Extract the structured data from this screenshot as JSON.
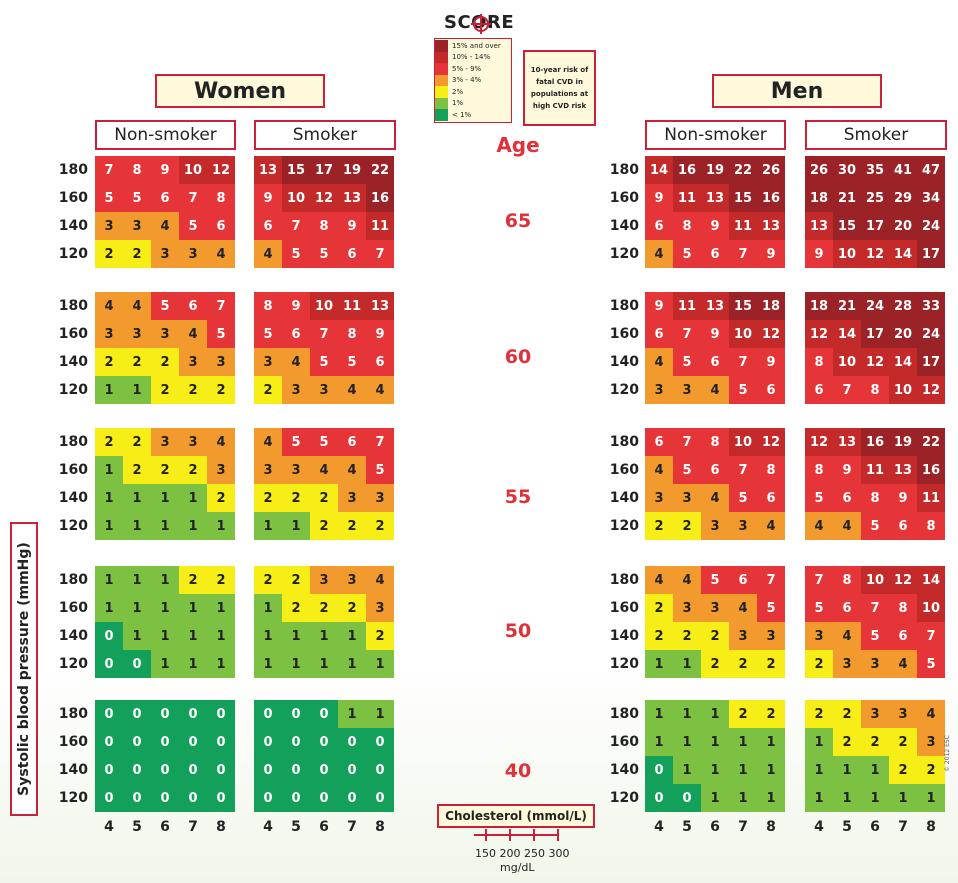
{
  "header": {
    "logo_text": "SCORE",
    "women_title": "Women",
    "men_title": "Men",
    "non_smoker": "Non-smoker",
    "smoker": "Smoker",
    "age_title": "Age",
    "risk_note": "10-year risk of fatal CVD in populations at high CVD risk"
  },
  "legend": [
    {
      "label": "15% and over",
      "color": "#9b2227"
    },
    {
      "label": "10% - 14%",
      "color": "#c52a2a"
    },
    {
      "label": "5% - 9%",
      "color": "#e53538"
    },
    {
      "label": "3% - 4%",
      "color": "#f39a2e"
    },
    {
      "label": "2%",
      "color": "#f8ee17"
    },
    {
      "label": "1%",
      "color": "#7dc142"
    },
    {
      "label": "< 1%",
      "color": "#12a05a"
    }
  ],
  "footer": {
    "cholesterol_label": "Cholesterol (mmol/L)",
    "mg_values": [
      "150",
      "200",
      "250",
      "300"
    ],
    "mg_unit": "mg/dL",
    "y_axis_label": "Systolic blood pressure (mmHg)",
    "copyright": "© 2012 ESC"
  },
  "chart_data": {
    "type": "heatmap",
    "title": "SCORE",
    "xlabel": "Cholesterol (mmol/L)",
    "ylabel": "Systolic blood pressure (mmHg)",
    "x_categories": [
      "4",
      "5",
      "6",
      "7",
      "8"
    ],
    "y_categories": [
      "180",
      "160",
      "140",
      "120"
    ],
    "ages": [
      "65",
      "60",
      "55",
      "50",
      "40"
    ],
    "panels": [
      {
        "sex": "Women",
        "smoking": "Non-smoker",
        "grids": [
          [
            [
              7,
              8,
              9,
              10,
              12
            ],
            [
              5,
              5,
              6,
              7,
              8
            ],
            [
              3,
              3,
              4,
              5,
              6
            ],
            [
              2,
              2,
              3,
              3,
              4
            ]
          ],
          [
            [
              4,
              4,
              5,
              6,
              7
            ],
            [
              3,
              3,
              3,
              4,
              5
            ],
            [
              2,
              2,
              2,
              3,
              3
            ],
            [
              1,
              1,
              2,
              2,
              2
            ]
          ],
          [
            [
              2,
              2,
              3,
              3,
              4
            ],
            [
              1,
              2,
              2,
              2,
              3
            ],
            [
              1,
              1,
              1,
              1,
              2
            ],
            [
              1,
              1,
              1,
              1,
              1
            ]
          ],
          [
            [
              1,
              1,
              1,
              2,
              2
            ],
            [
              1,
              1,
              1,
              1,
              1
            ],
            [
              0,
              1,
              1,
              1,
              1
            ],
            [
              0,
              0,
              1,
              1,
              1
            ]
          ],
          [
            [
              0,
              0,
              0,
              0,
              0
            ],
            [
              0,
              0,
              0,
              0,
              0
            ],
            [
              0,
              0,
              0,
              0,
              0
            ],
            [
              0,
              0,
              0,
              0,
              0
            ]
          ]
        ]
      },
      {
        "sex": "Women",
        "smoking": "Smoker",
        "grids": [
          [
            [
              13,
              15,
              17,
              19,
              22
            ],
            [
              9,
              10,
              12,
              13,
              16
            ],
            [
              6,
              7,
              8,
              9,
              11
            ],
            [
              4,
              5,
              5,
              6,
              7
            ]
          ],
          [
            [
              8,
              9,
              10,
              11,
              13
            ],
            [
              5,
              6,
              7,
              8,
              9
            ],
            [
              3,
              4,
              5,
              5,
              6
            ],
            [
              2,
              3,
              3,
              4,
              4
            ]
          ],
          [
            [
              4,
              5,
              5,
              6,
              7
            ],
            [
              3,
              3,
              4,
              4,
              5
            ],
            [
              2,
              2,
              2,
              3,
              3
            ],
            [
              1,
              1,
              2,
              2,
              2
            ]
          ],
          [
            [
              2,
              2,
              3,
              3,
              4
            ],
            [
              1,
              2,
              2,
              2,
              3
            ],
            [
              1,
              1,
              1,
              1,
              2
            ],
            [
              1,
              1,
              1,
              1,
              1
            ]
          ],
          [
            [
              0,
              0,
              0,
              1,
              1
            ],
            [
              0,
              0,
              0,
              0,
              0
            ],
            [
              0,
              0,
              0,
              0,
              0
            ],
            [
              0,
              0,
              0,
              0,
              0
            ]
          ]
        ]
      },
      {
        "sex": "Men",
        "smoking": "Non-smoker",
        "grids": [
          [
            [
              14,
              16,
              19,
              22,
              26
            ],
            [
              9,
              11,
              13,
              15,
              16
            ],
            [
              6,
              8,
              9,
              11,
              13
            ],
            [
              4,
              5,
              6,
              7,
              9
            ]
          ],
          [
            [
              9,
              11,
              13,
              15,
              18
            ],
            [
              6,
              7,
              9,
              10,
              12
            ],
            [
              4,
              5,
              6,
              7,
              9
            ],
            [
              3,
              3,
              4,
              5,
              6
            ]
          ],
          [
            [
              6,
              7,
              8,
              10,
              12
            ],
            [
              4,
              5,
              6,
              7,
              8
            ],
            [
              3,
              3,
              4,
              5,
              6
            ],
            [
              2,
              2,
              3,
              3,
              4
            ]
          ],
          [
            [
              4,
              4,
              5,
              6,
              7
            ],
            [
              2,
              3,
              3,
              4,
              5
            ],
            [
              2,
              2,
              2,
              3,
              3
            ],
            [
              1,
              1,
              2,
              2,
              2
            ]
          ],
          [
            [
              1,
              1,
              1,
              2,
              2
            ],
            [
              1,
              1,
              1,
              1,
              1
            ],
            [
              0,
              1,
              1,
              1,
              1
            ],
            [
              0,
              0,
              1,
              1,
              1
            ]
          ]
        ]
      },
      {
        "sex": "Men",
        "smoking": "Smoker",
        "grids": [
          [
            [
              26,
              30,
              35,
              41,
              47
            ],
            [
              18,
              21,
              25,
              29,
              34
            ],
            [
              13,
              15,
              17,
              20,
              24
            ],
            [
              9,
              10,
              12,
              14,
              17
            ]
          ],
          [
            [
              18,
              21,
              24,
              28,
              33
            ],
            [
              12,
              14,
              17,
              20,
              24
            ],
            [
              8,
              10,
              12,
              14,
              17
            ],
            [
              6,
              7,
              8,
              10,
              12
            ]
          ],
          [
            [
              12,
              13,
              16,
              19,
              22
            ],
            [
              8,
              9,
              11,
              13,
              16
            ],
            [
              5,
              6,
              8,
              9,
              11
            ],
            [
              4,
              4,
              5,
              6,
              8
            ]
          ],
          [
            [
              7,
              8,
              10,
              12,
              14
            ],
            [
              5,
              6,
              7,
              8,
              10
            ],
            [
              3,
              4,
              5,
              6,
              7
            ],
            [
              2,
              3,
              3,
              4,
              5
            ]
          ],
          [
            [
              2,
              2,
              3,
              3,
              4
            ],
            [
              1,
              2,
              2,
              2,
              3
            ],
            [
              1,
              1,
              1,
              2,
              2
            ],
            [
              1,
              1,
              1,
              1,
              1
            ]
          ]
        ]
      }
    ]
  }
}
